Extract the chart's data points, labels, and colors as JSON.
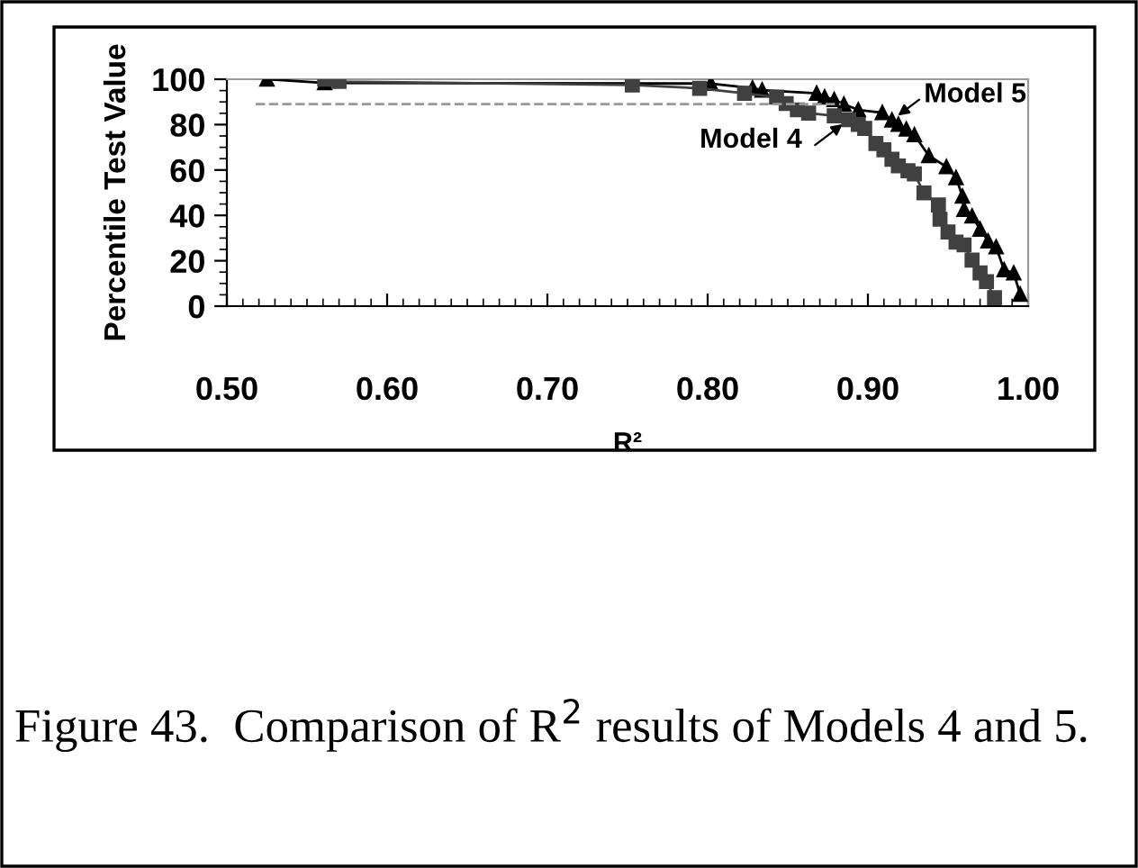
{
  "chart_data": {
    "type": "line",
    "xlabel": "R²",
    "ylabel": "Percentile Test Value",
    "xlim": [
      0.5,
      1.0
    ],
    "xticks": [
      {
        "value": 0.5,
        "label": "0.50"
      },
      {
        "value": 0.6,
        "label": "0.60"
      },
      {
        "value": 0.7,
        "label": "0.70"
      },
      {
        "value": 0.8,
        "label": "0.80"
      },
      {
        "value": 0.9,
        "label": "0.90"
      },
      {
        "value": 1.0,
        "label": "1.00"
      }
    ],
    "ylim": [
      0,
      100
    ],
    "yticks": [
      0,
      20,
      40,
      60,
      80,
      100
    ],
    "grid": false,
    "legend": false,
    "series": [
      {
        "color": "#999999",
        "line_style": "dashed",
        "marker": "none",
        "x": [
          0.518,
          0.883
        ],
        "values": [
          89,
          89
        ]
      },
      {
        "color": "#404040",
        "marker": "square",
        "x": [
          0.561,
          0.57,
          0.753,
          0.795,
          0.823,
          0.843,
          0.849,
          0.856,
          0.863,
          0.879,
          0.888,
          0.894,
          0.898,
          0.905,
          0.91,
          0.915,
          0.919,
          0.925,
          0.929,
          0.935,
          0.944,
          0.945,
          0.95,
          0.955,
          0.96,
          0.965,
          0.97,
          0.974,
          0.979
        ],
        "values": [
          100,
          99,
          97.5,
          96,
          93.8,
          92.1,
          89.3,
          86.5,
          85.1,
          83.9,
          82.2,
          80.1,
          78.3,
          71.7,
          68.9,
          64.7,
          61.8,
          59.7,
          58.3,
          49.9,
          44.6,
          38.3,
          32.7,
          28.2,
          27,
          20.3,
          14.6,
          10.8,
          3.7
        ]
      },
      {
        "color": "#000000",
        "marker": "triangle",
        "x": [
          0.525,
          0.561,
          0.802,
          0.828,
          0.834,
          0.868,
          0.873,
          0.879,
          0.885,
          0.894,
          0.909,
          0.915,
          0.919,
          0.924,
          0.929,
          0.938,
          0.949,
          0.955,
          0.959,
          0.96,
          0.965,
          0.97,
          0.975,
          0.98,
          0.985,
          0.991,
          0.995
        ],
        "values": [
          100,
          98.4,
          98.1,
          96.1,
          95.2,
          93.8,
          92.1,
          91,
          89,
          86.5,
          85.3,
          82,
          80.1,
          78,
          75.5,
          66.3,
          61.4,
          56.6,
          48.4,
          42.6,
          39.7,
          33.9,
          28.7,
          26.1,
          16,
          14.6,
          5.2
        ]
      }
    ],
    "annotations": [
      {
        "text": "Model 5",
        "x": 0.915,
        "y": 82
      },
      {
        "text": "Model 4",
        "x": 0.888,
        "y": 82.2
      },
      "Figure 43.  Comparison of R$^{2}$ results of Models 4 and 5."
    ]
  }
}
